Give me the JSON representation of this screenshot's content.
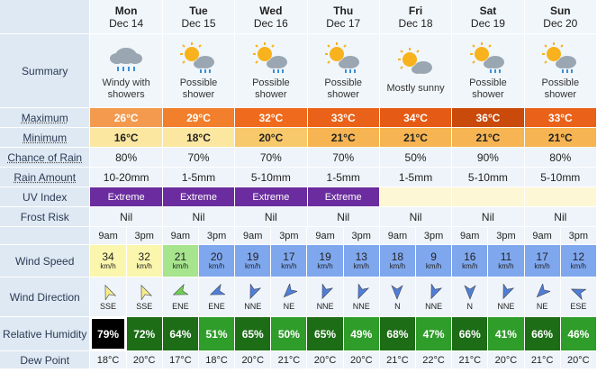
{
  "days": [
    {
      "name": "Mon",
      "date": "Dec 14",
      "summary": "Windy with showers",
      "icon": "cloud-rain-icon",
      "max": "26°C",
      "min": "16°C",
      "rain_chance": "80%",
      "rain_amount": "10-20mm",
      "uv": "Extreme",
      "frost": "Nil"
    },
    {
      "name": "Tue",
      "date": "Dec 15",
      "summary": "Possible shower",
      "icon": "sun-cloud-rain-icon",
      "max": "29°C",
      "min": "18°C",
      "rain_chance": "70%",
      "rain_amount": "1-5mm",
      "uv": "Extreme",
      "frost": "Nil"
    },
    {
      "name": "Wed",
      "date": "Dec 16",
      "summary": "Possible shower",
      "icon": "sun-cloud-rain-icon",
      "max": "32°C",
      "min": "20°C",
      "rain_chance": "70%",
      "rain_amount": "5-10mm",
      "uv": "Extreme",
      "frost": "Nil"
    },
    {
      "name": "Thu",
      "date": "Dec 17",
      "summary": "Possible shower",
      "icon": "sun-cloud-rain-icon",
      "max": "33°C",
      "min": "21°C",
      "rain_chance": "70%",
      "rain_amount": "1-5mm",
      "uv": "Extreme",
      "frost": "Nil"
    },
    {
      "name": "Fri",
      "date": "Dec 18",
      "summary": "Mostly sunny",
      "icon": "sun-cloud-icon",
      "max": "34°C",
      "min": "21°C",
      "rain_chance": "50%",
      "rain_amount": "1-5mm",
      "uv": "",
      "frost": "Nil"
    },
    {
      "name": "Sat",
      "date": "Dec 19",
      "summary": "Possible shower",
      "icon": "sun-cloud-rain-icon",
      "max": "36°C",
      "min": "21°C",
      "rain_chance": "90%",
      "rain_amount": "5-10mm",
      "uv": "",
      "frost": "Nil"
    },
    {
      "name": "Sun",
      "date": "Dec 20",
      "summary": "Possible shower",
      "icon": "sun-cloud-rain-icon",
      "max": "33°C",
      "min": "21°C",
      "rain_chance": "80%",
      "rain_amount": "5-10mm",
      "uv": "",
      "frost": "Nil"
    }
  ],
  "labels": {
    "summary": "Summary",
    "maximum": "Maximum",
    "minimum": "Minimum",
    "chance_of_rain": "Chance of Rain",
    "rain_amount": "Rain Amount",
    "uv_index": "UV Index",
    "frost_risk": "Frost Risk",
    "wind_speed": "Wind Speed",
    "wind_direction": "Wind Direction",
    "relative_humidity": "Relative Humidity",
    "dew_point": "Dew Point"
  },
  "wind_unit": "km/h",
  "slots": [
    {
      "time": "9am",
      "speed": "34",
      "dir": "SSE",
      "humidity": "79%",
      "dew": "18°C"
    },
    {
      "time": "3pm",
      "speed": "32",
      "dir": "SSE",
      "humidity": "72%",
      "dew": "20°C"
    },
    {
      "time": "9am",
      "speed": "21",
      "dir": "ENE",
      "humidity": "64%",
      "dew": "17°C"
    },
    {
      "time": "3pm",
      "speed": "20",
      "dir": "ENE",
      "humidity": "51%",
      "dew": "18°C"
    },
    {
      "time": "9am",
      "speed": "19",
      "dir": "NNE",
      "humidity": "65%",
      "dew": "20°C"
    },
    {
      "time": "3pm",
      "speed": "17",
      "dir": "NE",
      "humidity": "50%",
      "dew": "21°C"
    },
    {
      "time": "9am",
      "speed": "19",
      "dir": "NNE",
      "humidity": "65%",
      "dew": "20°C"
    },
    {
      "time": "3pm",
      "speed": "13",
      "dir": "NNE",
      "humidity": "49%",
      "dew": "20°C"
    },
    {
      "time": "9am",
      "speed": "18",
      "dir": "N",
      "humidity": "68%",
      "dew": "21°C"
    },
    {
      "time": "3pm",
      "speed": "9",
      "dir": "NNE",
      "humidity": "47%",
      "dew": "22°C"
    },
    {
      "time": "9am",
      "speed": "16",
      "dir": "N",
      "humidity": "66%",
      "dew": "21°C"
    },
    {
      "time": "3pm",
      "speed": "11",
      "dir": "NNE",
      "humidity": "41%",
      "dew": "20°C"
    },
    {
      "time": "9am",
      "speed": "17",
      "dir": "NE",
      "humidity": "66%",
      "dew": "21°C"
    },
    {
      "time": "3pm",
      "speed": "12",
      "dir": "ESE",
      "humidity": "46%",
      "dew": "20°C"
    }
  ],
  "colors": {
    "max": [
      "#f39a4e",
      "#f17f2b",
      "#ef6a1c",
      "#ea6219",
      "#e55a14",
      "#c94a0b",
      "#ea6219"
    ],
    "min": [
      "#fbe7a0",
      "#fbe7a0",
      "#f8c96a",
      "#f6b552",
      "#f6b552",
      "#f6b552",
      "#f6b552"
    ],
    "wind": [
      "#fbf6ad",
      "#fbf6ad",
      "#a6e48d",
      "#7fa7ee",
      "#7fa7ee",
      "#7fa7ee",
      "#7fa7ee",
      "#7fa7ee",
      "#7fa7ee",
      "#7fa7ee",
      "#7fa7ee",
      "#7fa7ee",
      "#7fa7ee",
      "#7fa7ee"
    ],
    "wind_arrow": [
      "#f5ec8b",
      "#f5ec8b",
      "#6fd050",
      "#4f7fd8",
      "#4f7fd8",
      "#4f7fd8",
      "#4f7fd8",
      "#4f7fd8",
      "#4f7fd8",
      "#4f7fd8",
      "#4f7fd8",
      "#4f7fd8",
      "#4f7fd8",
      "#4f7fd8"
    ],
    "humidity": [
      "#000000",
      "#1d6d17",
      "#1d6d17",
      "#2f9d2a",
      "#1d6d17",
      "#2f9d2a",
      "#1d6d17",
      "#2f9d2a",
      "#1d6d17",
      "#2f9d2a",
      "#1d6d17",
      "#2f9d2a",
      "#1d6d17",
      "#2f9d2a"
    ]
  }
}
